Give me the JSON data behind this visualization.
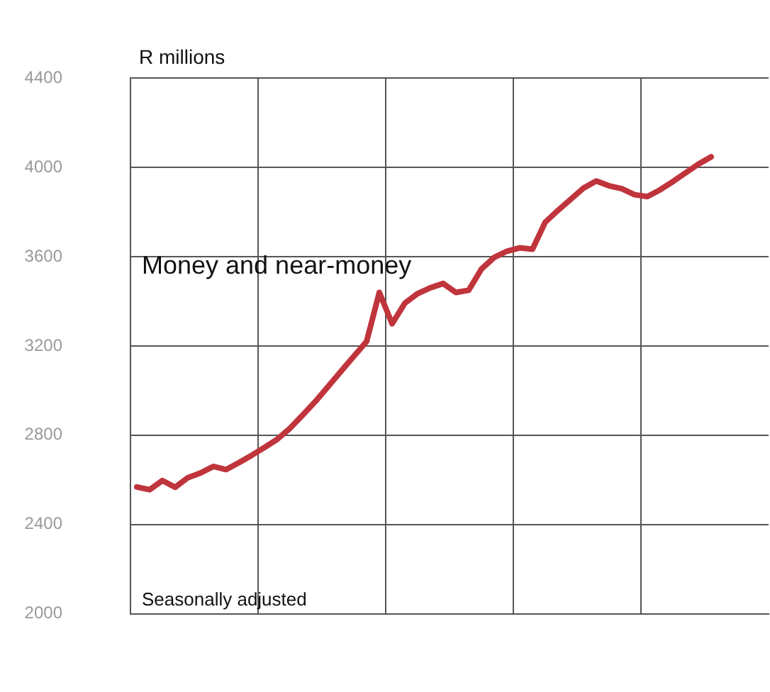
{
  "chart_data": {
    "type": "line",
    "ylabel": "R millions",
    "annotations": [
      "Seasonally adjusted"
    ],
    "categories": [
      null,
      null,
      null,
      null,
      null,
      null,
      null,
      null,
      null,
      null,
      null,
      null,
      null,
      null,
      null,
      null,
      null,
      null,
      null,
      null,
      null,
      null,
      null,
      null,
      null,
      null,
      null,
      null,
      null,
      null,
      null,
      null,
      null,
      null,
      null,
      null,
      null,
      null,
      null,
      null,
      null,
      null,
      null,
      null,
      null,
      null,
      null,
      null,
      null,
      null
    ],
    "series": [
      {
        "name": "Money and near-money",
        "color": "#c0343c",
        "values": [
          2568,
          2556,
          2597,
          2567,
          2610,
          2631,
          2660,
          2646,
          2677,
          2710,
          2745,
          2782,
          2831,
          2891,
          2952,
          3019,
          3087,
          3154,
          3220,
          3440,
          3300,
          3392,
          3435,
          3461,
          3480,
          3440,
          3450,
          3545,
          3597,
          3625,
          3640,
          3634,
          3755,
          3808,
          3858,
          3908,
          3940,
          3918,
          3905,
          3878,
          3870,
          3900,
          3937,
          3976,
          4015,
          4048,
          null,
          null,
          null,
          null
        ]
      }
    ],
    "ylim": [
      2000,
      4400
    ],
    "yticks": [
      2000,
      2400,
      2800,
      3200,
      3600,
      4000,
      4400
    ],
    "grid": true,
    "legend": false,
    "marker": "none",
    "line_style": "solid"
  }
}
